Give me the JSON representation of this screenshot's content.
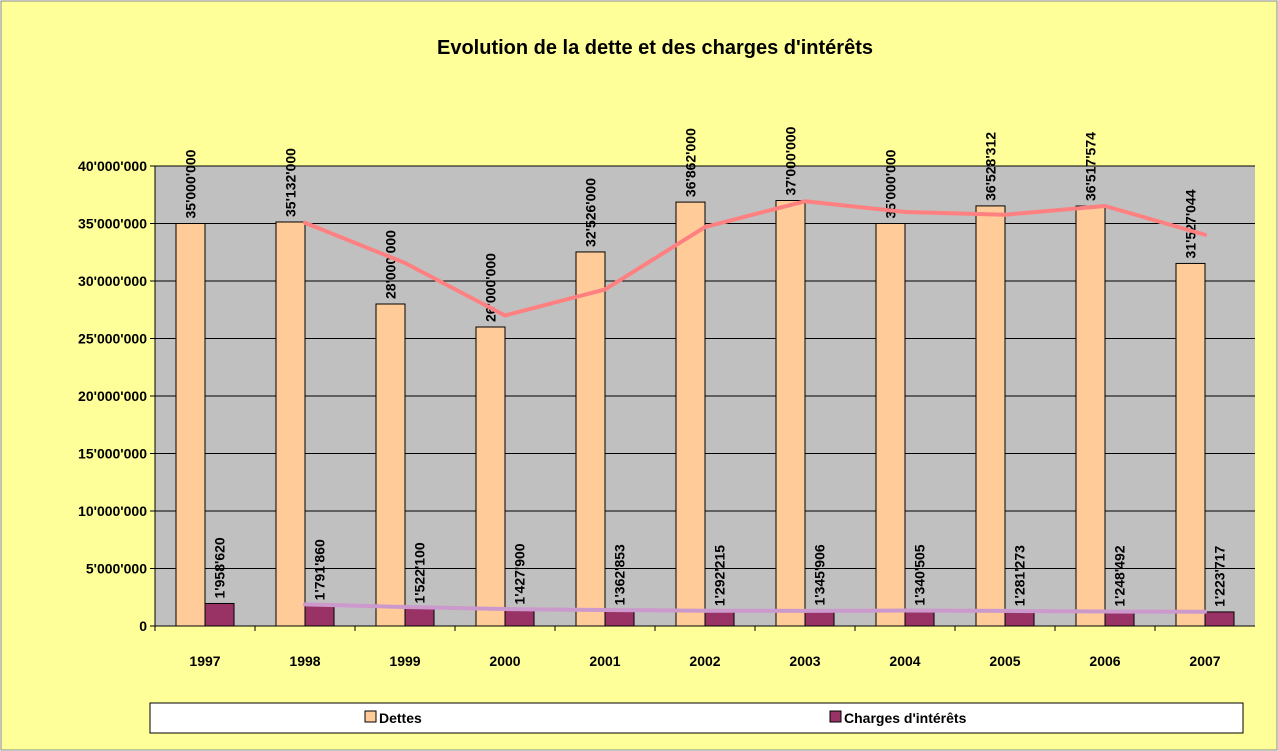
{
  "chart_data": {
    "type": "bar",
    "title": "Evolution de la dette et des charges d'intérêts",
    "categories": [
      "1997",
      "1998",
      "1999",
      "2000",
      "2001",
      "2002",
      "2003",
      "2004",
      "2005",
      "2006",
      "2007"
    ],
    "series": [
      {
        "name": "Dettes",
        "color": "#FFCC99",
        "trendline_color": "#FF8080",
        "values": [
          35000000,
          35132000,
          28000000,
          26000000,
          32526000,
          36862000,
          37000000,
          35000000,
          36528312,
          36517574,
          31527044
        ],
        "value_labels": [
          "35'000'000",
          "35'132'000",
          "28'000'000",
          "26'000'000",
          "32'526'000",
          "36'862'000",
          "37'000'000",
          "35'000'000",
          "36'528'312",
          "36'517'574",
          "31'527'044"
        ]
      },
      {
        "name": "Charges d'intérêts",
        "color": "#993366",
        "trendline_color": "#CC99CC",
        "values": [
          1958620,
          1791860,
          1522100,
          1427900,
          1362853,
          1292215,
          1345906,
          1340505,
          1281273,
          1248492,
          1223717
        ],
        "value_labels": [
          "1'958'620",
          "1'791'860",
          "1'522'100",
          "1'427'900",
          "1'362'853",
          "1'292'215",
          "1'345'906",
          "1'340'505",
          "1'281'273",
          "1'248'492",
          "1'223'717"
        ]
      }
    ],
    "moving_average_period": 2,
    "ylim": [
      0,
      40000000
    ],
    "yticks": [
      0,
      {
        "value": 5000000,
        "label": "5'000'000"
      },
      {
        "value": 10000000,
        "label": "10'000'000"
      },
      {
        "value": 15000000,
        "label": "15'000'000"
      },
      {
        "value": 20000000,
        "label": "20'000'000"
      },
      {
        "value": 25000000,
        "label": "25'000'000"
      },
      {
        "value": 30000000,
        "label": "30'000'000"
      },
      {
        "value": 35000000,
        "label": "35'000'000"
      },
      {
        "value": 40000000,
        "label": "40'000'000"
      }
    ],
    "grid": true,
    "legend": "bottom"
  }
}
